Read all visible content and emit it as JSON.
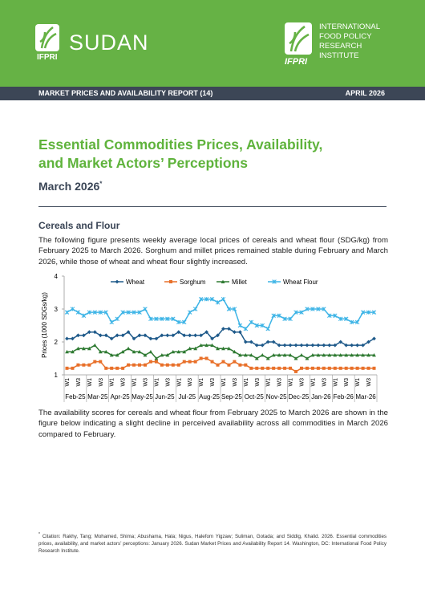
{
  "header": {
    "brand": "SUDAN",
    "logo_text": "IFPRI",
    "org_logo_text": "IFPRI",
    "org_name": [
      "INTERNATIONAL",
      "FOOD POLICY",
      "RESEARCH",
      "INSTITUTE"
    ]
  },
  "banner": {
    "report": "MARKET PRICES AND AVAILABILITY REPORT (14)",
    "date": "APRIL 2026"
  },
  "title": [
    "Essential Commodities Prices, Availability,",
    "and Market Actors’ Perceptions"
  ],
  "subtitle": "March 2026",
  "subtitle_marker": "*",
  "section": "Cereals and Flour",
  "paragraphs": [
    "The following figure presents weekly average local prices of cereals and wheat flour (SDG/kg) from February 2025 to March 2026. Sorghum and millet prices remained stable during February and March 2026, while those of wheat and wheat flour slightly increased.",
    "The availability scores for cereals and wheat flour from February 2025 to March 2026 are shown in the figure below indicating a slight decline in perceived availability across all commodities in March 2026 compared to February."
  ],
  "footnote": {
    "marker": "*",
    "text": "Citation: Rakhy, Tang; Mohamed, Shima; Abushama, Hala; Nigus, Halefom Yigzaw; Suliman, Gotada; and Siddig, Khalid. 2026. Essential commodities prices, availability, and market actors’ perceptions: January 2026. Sudan Market Prices and Availability Report 14. Washington, DC: International Food Policy Research Institute."
  },
  "chart_data": {
    "type": "line",
    "y_label": "Prices (1000 SDGs/kg)",
    "ylim": [
      1,
      4
    ],
    "yticks": [
      1,
      2,
      3,
      4
    ],
    "months": [
      "Feb-25",
      "Mar-25",
      "Apr-25",
      "May-25",
      "Jun-25",
      "Jul-25",
      "Aug-25",
      "Sep-25",
      "Oct-25",
      "Nov-25",
      "Dec-25",
      "Jan-26",
      "Feb-26",
      "Mar-26"
    ],
    "categories": [
      "W1",
      null,
      "W3",
      null,
      "W1",
      null,
      "W3",
      null,
      "W1",
      null,
      "W3",
      null,
      "W1",
      null,
      "W3",
      null,
      "W1",
      null,
      "W3",
      null,
      "W1",
      null,
      "W3",
      null,
      "W1",
      null,
      "W3",
      null,
      "W1",
      null,
      "W3",
      null,
      "W1",
      null,
      "W3",
      null,
      "W1",
      null,
      "W3",
      null,
      "W1",
      null,
      "W3",
      null,
      "W1",
      null,
      "W3",
      null,
      "W1",
      null,
      "W3",
      null,
      "W1",
      null,
      "W3",
      null
    ],
    "series": [
      {
        "name": "Wheat",
        "color": "#1f5a8a",
        "marker": "diamond",
        "values": [
          2.1,
          2.1,
          2.2,
          2.2,
          2.3,
          2.3,
          2.2,
          2.2,
          2.1,
          2.2,
          2.2,
          2.3,
          2.1,
          2.2,
          2.2,
          2.1,
          2.1,
          2.2,
          2.2,
          2.2,
          2.3,
          2.2,
          2.2,
          2.2,
          2.2,
          2.3,
          2.1,
          2.2,
          2.4,
          2.4,
          2.3,
          2.3,
          2.0,
          2.0,
          1.9,
          1.9,
          2.0,
          2.0,
          1.9,
          1.9,
          1.9,
          1.9,
          1.9,
          1.9,
          1.9,
          1.9,
          1.9,
          1.9,
          1.9,
          2.0,
          1.9,
          1.9,
          1.9,
          1.9,
          2.0,
          2.1
        ]
      },
      {
        "name": "Sorghum",
        "color": "#e8702a",
        "marker": "square",
        "values": [
          1.2,
          1.2,
          1.3,
          1.3,
          1.3,
          1.4,
          1.4,
          1.2,
          1.2,
          1.2,
          1.2,
          1.3,
          1.3,
          1.3,
          1.3,
          1.4,
          1.4,
          1.3,
          1.3,
          1.3,
          1.3,
          1.4,
          1.4,
          1.4,
          1.5,
          1.5,
          1.4,
          1.3,
          1.4,
          1.3,
          1.4,
          1.3,
          1.3,
          1.2,
          1.2,
          1.2,
          1.2,
          1.2,
          1.2,
          1.2,
          1.2,
          1.1,
          1.2,
          1.2,
          1.2,
          1.2,
          1.2,
          1.2,
          1.2,
          1.2,
          1.2,
          1.2,
          1.2,
          1.2,
          1.2,
          1.2
        ]
      },
      {
        "name": "Millet",
        "color": "#2f7a32",
        "marker": "triangle",
        "values": [
          1.7,
          1.7,
          1.8,
          1.8,
          1.8,
          1.9,
          1.7,
          1.7,
          1.6,
          1.6,
          1.7,
          1.8,
          1.7,
          1.7,
          1.6,
          1.7,
          1.5,
          1.6,
          1.6,
          1.7,
          1.7,
          1.7,
          1.8,
          1.8,
          1.9,
          1.9,
          1.9,
          1.8,
          1.8,
          1.8,
          1.7,
          1.6,
          1.6,
          1.6,
          1.5,
          1.6,
          1.5,
          1.6,
          1.6,
          1.6,
          1.6,
          1.5,
          1.6,
          1.5,
          1.6,
          1.6,
          1.6,
          1.6,
          1.6,
          1.6,
          1.6,
          1.6,
          1.6,
          1.6,
          1.6,
          1.6
        ]
      },
      {
        "name": "Wheat Flour",
        "color": "#3db4e6",
        "marker": "star",
        "values": [
          2.9,
          3.0,
          2.9,
          2.8,
          2.9,
          2.9,
          2.9,
          2.9,
          2.6,
          2.7,
          2.9,
          2.9,
          2.9,
          2.9,
          3.0,
          2.7,
          2.7,
          2.7,
          2.7,
          2.7,
          2.6,
          2.6,
          2.9,
          3.0,
          3.3,
          3.3,
          3.3,
          3.2,
          3.3,
          3.0,
          3.0,
          2.5,
          2.4,
          2.6,
          2.5,
          2.5,
          2.4,
          2.8,
          2.8,
          2.7,
          2.7,
          2.9,
          2.9,
          3.0,
          3.0,
          3.0,
          3.0,
          2.8,
          2.8,
          2.7,
          2.7,
          2.6,
          2.6,
          2.9,
          2.9,
          2.9
        ]
      }
    ]
  }
}
